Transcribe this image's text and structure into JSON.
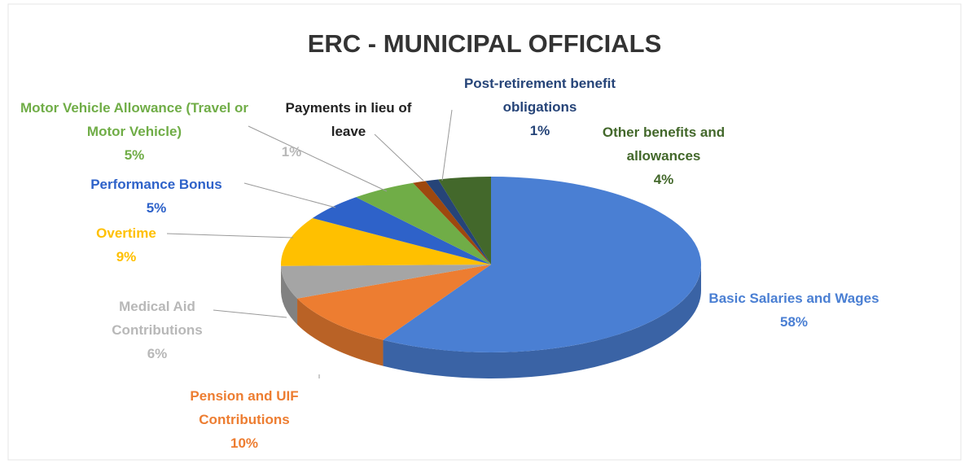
{
  "chart_data": {
    "type": "pie3d",
    "title": "ERC - MUNICIPAL OFFICIALS",
    "categories": [
      "Basic Salaries and Wages",
      "Pension and UIF Contributions",
      "Medical Aid Contributions",
      "Overtime",
      "Performance Bonus",
      "Motor Vehicle Allowance (Travel or Motor Vehicle)",
      "Payments in lieu of leave",
      "Post-retirement benefit obligations",
      "Other benefits and allowances"
    ],
    "values": [
      58,
      10,
      6,
      9,
      5,
      5,
      1,
      1,
      4
    ],
    "value_labels": [
      "58%",
      "10%",
      "6%",
      "9%",
      "5%",
      "5%",
      "1%",
      "1%",
      "4%"
    ],
    "colors": [
      "#4a7fd3",
      "#ed7d31",
      "#a5a5a5",
      "#ffc000",
      "#2e62c9",
      "#70ad47",
      "#9e480e",
      "#264478",
      "#43682b"
    ]
  }
}
